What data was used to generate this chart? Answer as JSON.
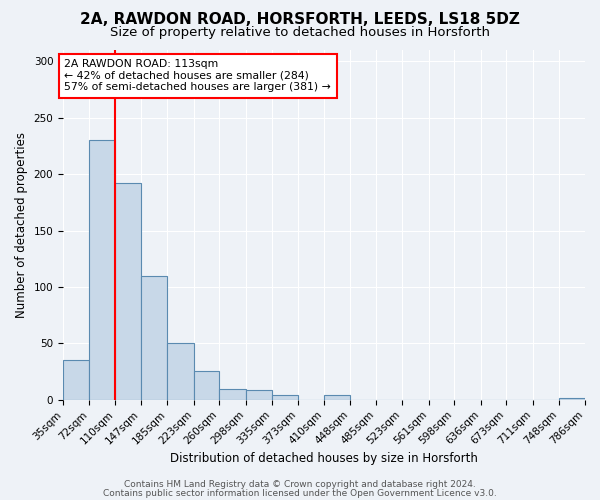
{
  "title": "2A, RAWDON ROAD, HORSFORTH, LEEDS, LS18 5DZ",
  "subtitle": "Size of property relative to detached houses in Horsforth",
  "xlabel": "Distribution of detached houses by size in Horsforth",
  "ylabel": "Number of detached properties",
  "bar_edges": [
    35,
    72,
    110,
    147,
    185,
    223,
    260,
    298,
    335,
    373,
    410,
    448,
    485,
    523,
    561,
    598,
    636,
    673,
    711,
    748,
    786
  ],
  "bar_heights": [
    35,
    230,
    192,
    110,
    50,
    26,
    10,
    9,
    4,
    0,
    4,
    0,
    0,
    0,
    0,
    0,
    0,
    0,
    0,
    2
  ],
  "bar_color": "#c8d8e8",
  "bar_edgecolor": "#5a8ab0",
  "bar_linewidth": 0.8,
  "vline_x": 110,
  "vline_color": "red",
  "vline_linewidth": 1.5,
  "annotation_box_text": "2A RAWDON ROAD: 113sqm\n← 42% of detached houses are smaller (284)\n57% of semi-detached houses are larger (381) →",
  "ylim": [
    0,
    310
  ],
  "yticks": [
    0,
    50,
    100,
    150,
    200,
    250,
    300
  ],
  "footer_line1": "Contains HM Land Registry data © Crown copyright and database right 2024.",
  "footer_line2": "Contains public sector information licensed under the Open Government Licence v3.0.",
  "bg_color": "#eef2f7",
  "plot_bg_color": "#eef2f7",
  "grid_color": "#ffffff",
  "title_fontsize": 11,
  "subtitle_fontsize": 9.5,
  "axis_label_fontsize": 8.5,
  "tick_fontsize": 7.5,
  "footer_fontsize": 6.5
}
